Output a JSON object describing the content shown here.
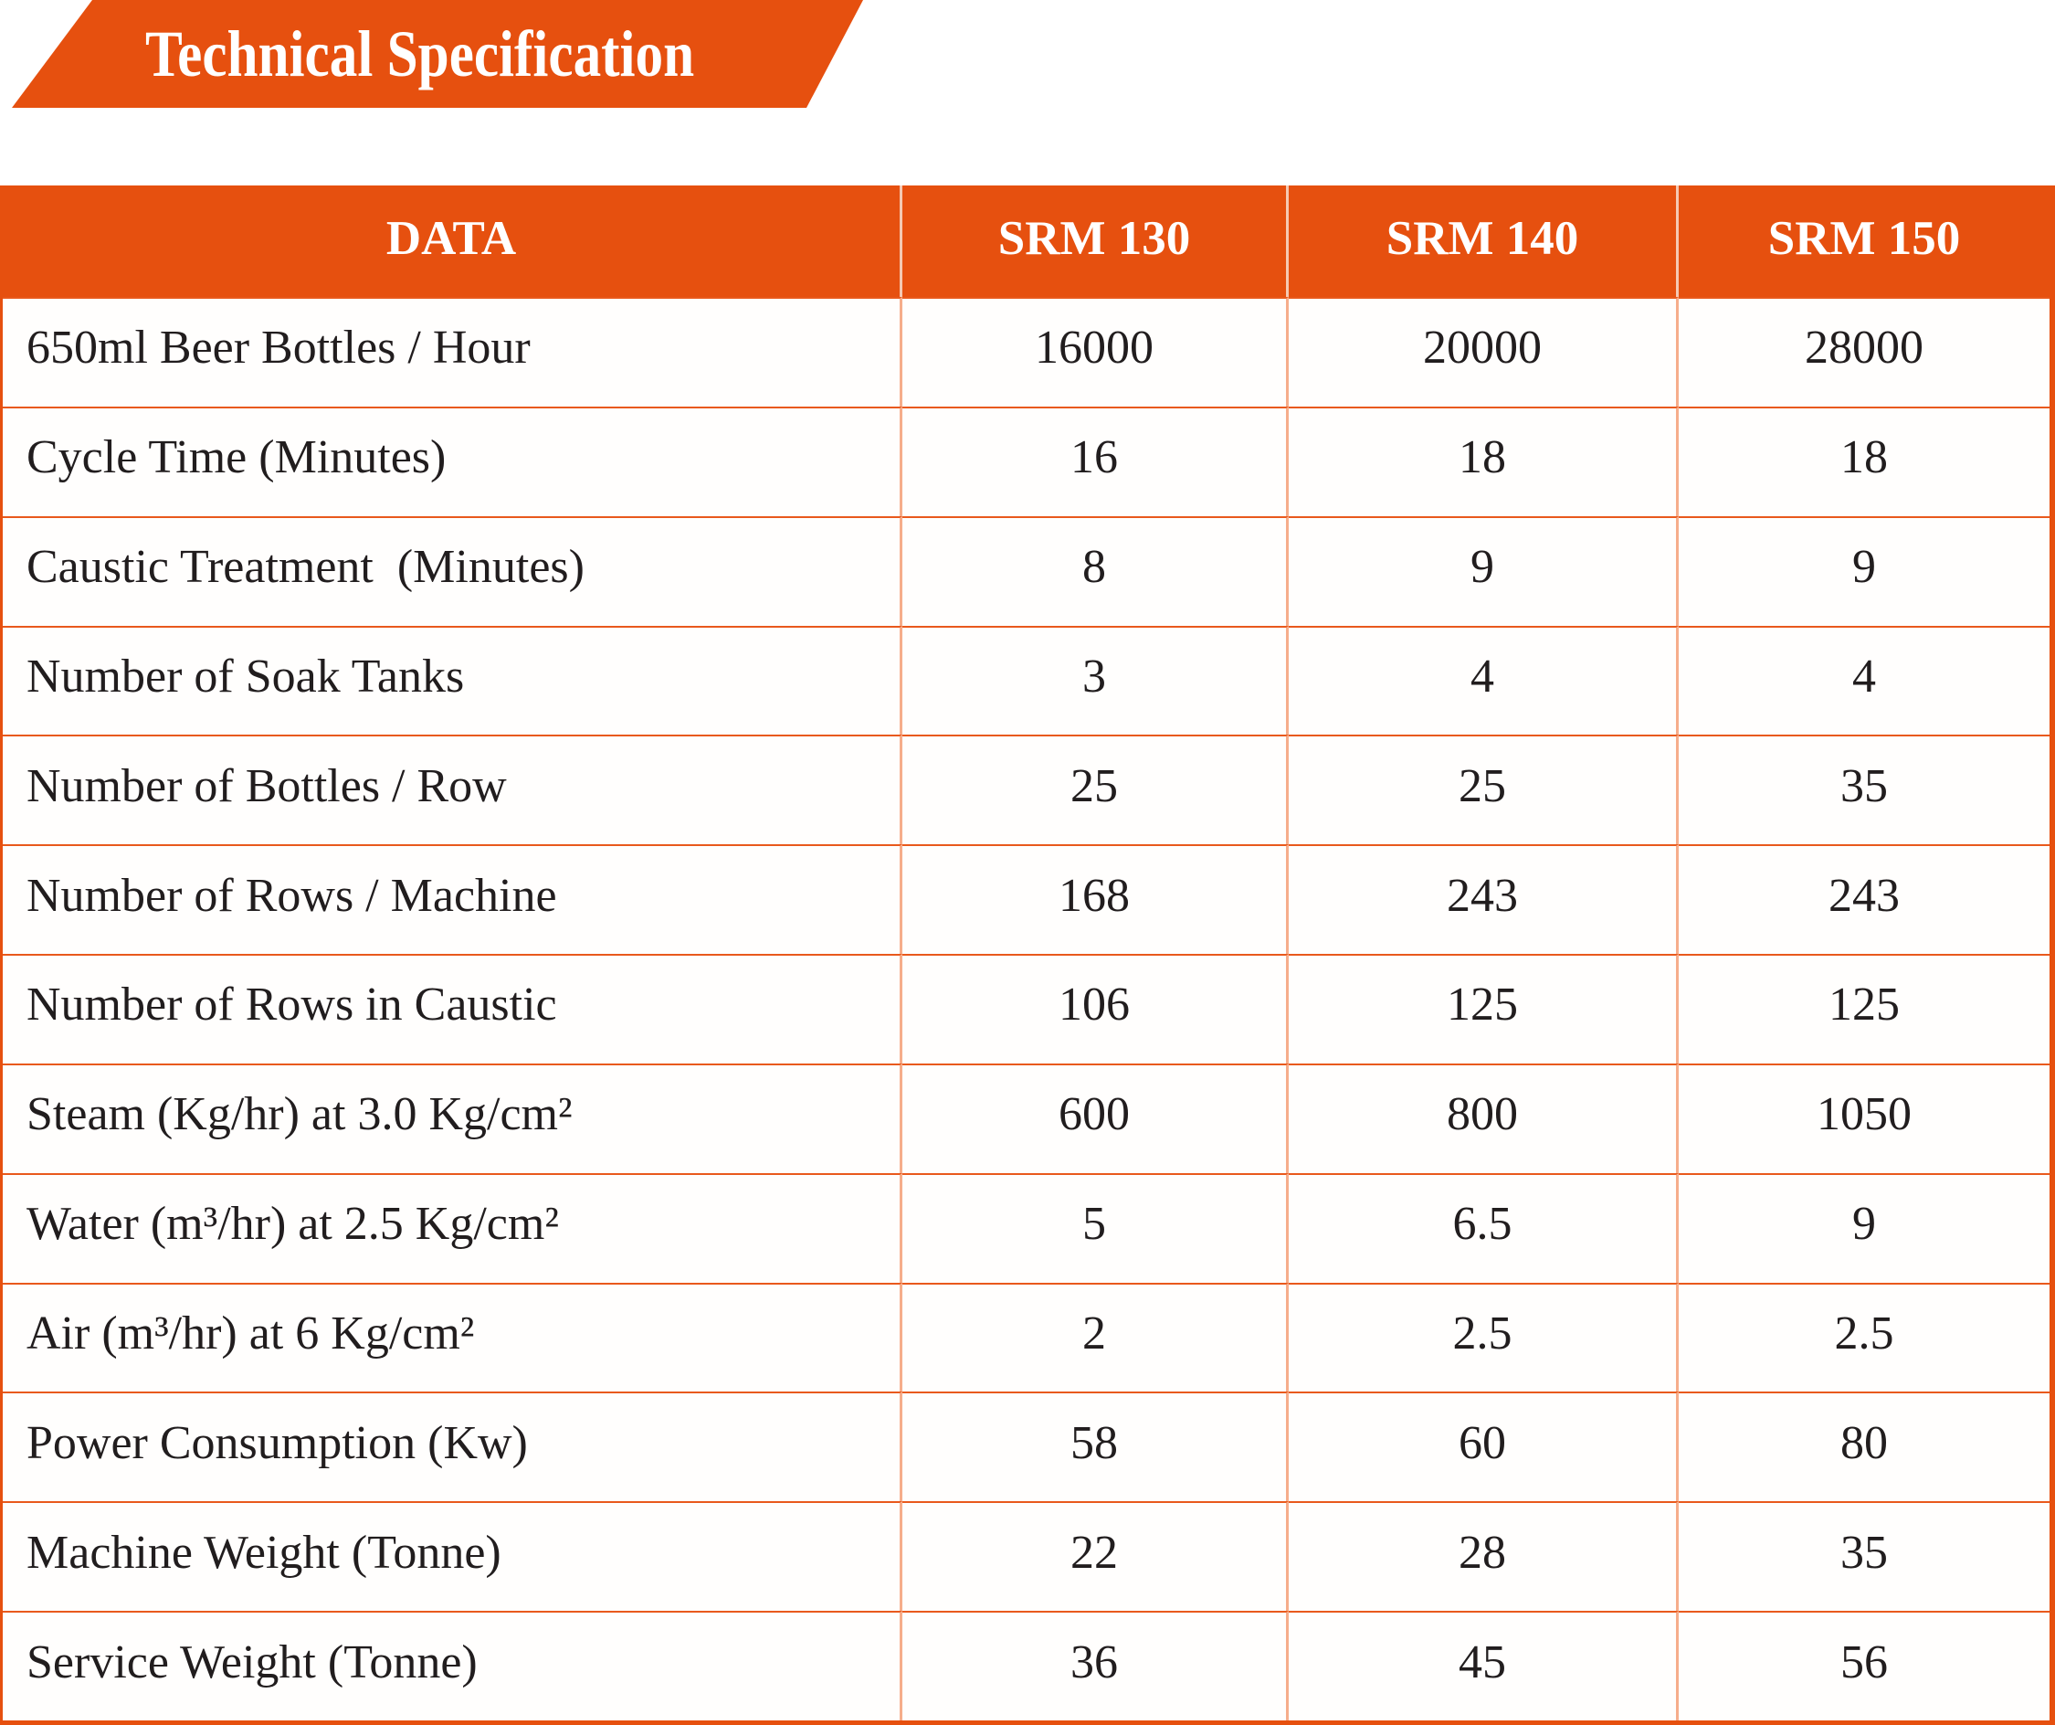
{
  "header": {
    "title": "Technical Specification"
  },
  "table": {
    "columns": [
      "DATA",
      "SRM 130",
      "SRM 140",
      "SRM 150"
    ],
    "rows": [
      {
        "label": "650ml Beer Bottles / Hour",
        "values": [
          "16000",
          "20000",
          "28000"
        ]
      },
      {
        "label": "Cycle Time (Minutes)",
        "values": [
          "16",
          "18",
          "18"
        ]
      },
      {
        "label": "Caustic Treatment  (Minutes)",
        "values": [
          "8",
          "9",
          "9"
        ]
      },
      {
        "label": "Number of Soak Tanks",
        "values": [
          "3",
          "4",
          "4"
        ]
      },
      {
        "label": "Number of Bottles / Row",
        "values": [
          "25",
          "25",
          "35"
        ]
      },
      {
        "label": "Number of Rows / Machine",
        "values": [
          "168",
          "243",
          "243"
        ]
      },
      {
        "label": "Number of Rows in Caustic",
        "values": [
          "106",
          "125",
          "125"
        ]
      },
      {
        "label": "Steam (Kg/hr) at 3.0 Kg/cm²",
        "values": [
          "600",
          "800",
          "1050"
        ]
      },
      {
        "label": "Water (m³/hr) at 2.5 Kg/cm²",
        "values": [
          "5",
          "6.5",
          "9"
        ]
      },
      {
        "label": "Air (m³/hr) at 6 Kg/cm²",
        "values": [
          "2",
          "2.5",
          "2.5"
        ]
      },
      {
        "label": "Power Consumption (Kw)",
        "values": [
          "58",
          "60",
          "80"
        ]
      },
      {
        "label": "Machine Weight (Tonne)",
        "values": [
          "22",
          "28",
          "35"
        ]
      },
      {
        "label": "Service Weight (Tonne)",
        "values": [
          "36",
          "45",
          "56"
        ]
      }
    ]
  },
  "colors": {
    "accent_orange": "#E6500F",
    "horizontal_divider": "#E9591C",
    "vertical_divider": "#F6AD8B",
    "header_vertical_divider": "#F5C9B3",
    "title_text": "#FFFFFF",
    "body_text": "#211D1E"
  }
}
